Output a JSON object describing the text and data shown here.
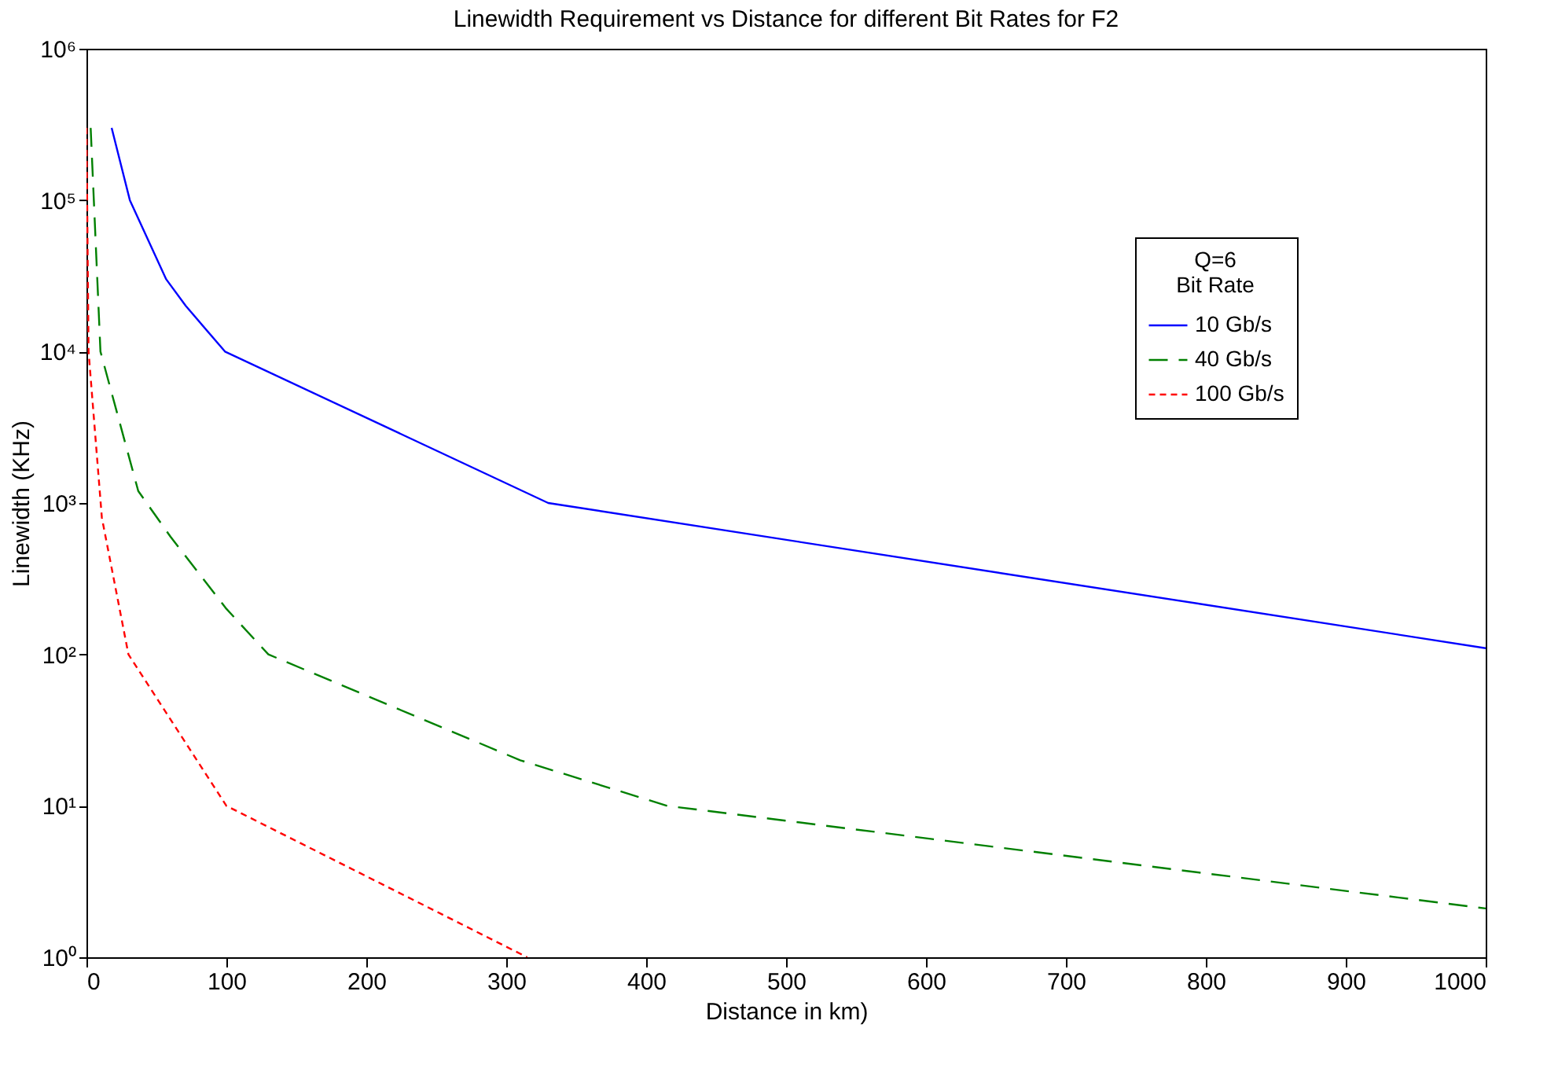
{
  "chart_data": {
    "type": "line",
    "title": "Linewidth Requirement vs Distance for different Bit Rates for F2",
    "xlabel": "Distance in km)",
    "ylabel": "Linewidth (KHz)",
    "legend_title": "Q=6\nBit Rate",
    "legend": "top right",
    "log": "y",
    "grid": false,
    "xlim": [
      0,
      1000
    ],
    "xticks": [
      0,
      100,
      200,
      300,
      400,
      500,
      600,
      700,
      800,
      900,
      {
        "value": 1000,
        "label": "1000"
      }
    ],
    "ylim": [
      1,
      1000000
    ],
    "yticks": [
      {
        "value": 1,
        "label": "10⁰"
      },
      {
        "value": 10,
        "label": "10¹"
      },
      {
        "value": 100,
        "label": "10²"
      },
      {
        "value": 1000,
        "label": "10³"
      },
      {
        "value": 10000,
        "label": "10⁴"
      },
      {
        "value": 100000,
        "label": "10⁵"
      },
      {
        "value": 1000000,
        "label": "10⁶"
      }
    ],
    "series": [
      {
        "name": "10 Gb/s",
        "color": "#0000ff",
        "line_style": "solid",
        "x": [
          18,
          31,
          57,
          71,
          99,
          330,
          1000
        ],
        "values": [
          300000,
          100000,
          30000,
          20000,
          10000,
          1000,
          110
        ]
      },
      {
        "name": "40 Gb/s",
        "color": "#008000",
        "line_style": "dashed",
        "x": [
          3,
          10,
          37,
          60,
          100,
          130,
          310,
          415,
          1000
        ],
        "values": [
          300000,
          10000,
          1200,
          600,
          200,
          100,
          20,
          10,
          2.1
        ]
      },
      {
        "name": "100 Gb/s",
        "color": "#ff0000",
        "line_style": "dotted",
        "x": [
          0,
          1.5,
          11,
          30,
          100,
          315
        ],
        "values": [
          300000,
          10000,
          800,
          100,
          10,
          1
        ]
      }
    ]
  }
}
